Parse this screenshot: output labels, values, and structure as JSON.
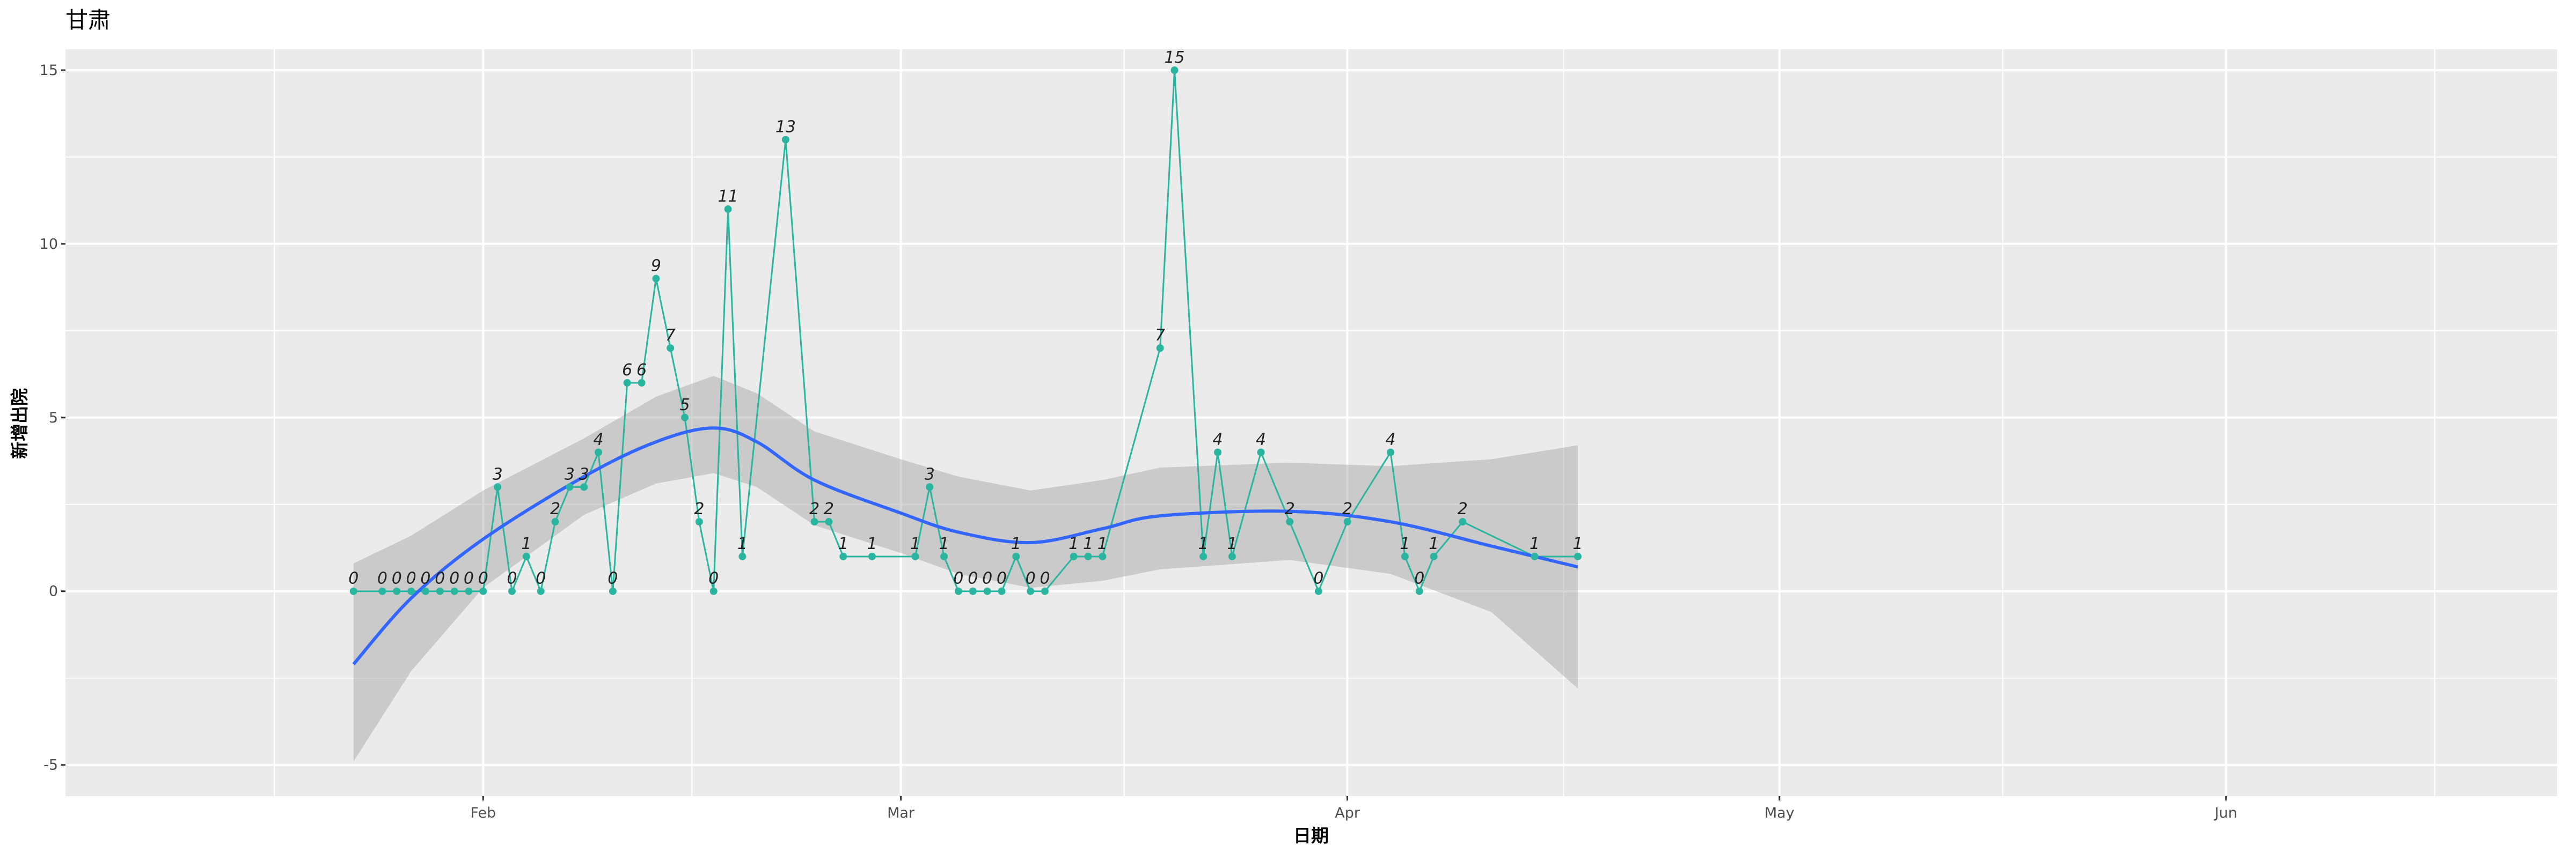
{
  "chart_data": {
    "type": "line",
    "title": "甘肃",
    "xlabel": "日期",
    "ylabel": "新增出院",
    "x_ticks": [
      {
        "date": "2020-02-01",
        "label": "Feb"
      },
      {
        "date": "2020-03-01",
        "label": "Mar"
      },
      {
        "date": "2020-04-01",
        "label": "Apr"
      },
      {
        "date": "2020-05-01",
        "label": "May"
      },
      {
        "date": "2020-06-01",
        "label": "Jun"
      }
    ],
    "y_ticks": [
      -5,
      0,
      5,
      10,
      15
    ],
    "xlim": [
      "2020-01-03",
      "2020-06-24"
    ],
    "ylim": [
      -5.9,
      15.6
    ],
    "grid": true,
    "colors": {
      "panel": "#EBEBEB",
      "grid": "#FFFFFF",
      "line": "#2AB5A0",
      "smooth": "#3366FF",
      "band": "#999999"
    },
    "points": [
      {
        "date": "2020-01-23",
        "y": 0
      },
      {
        "date": "2020-01-25",
        "y": 0
      },
      {
        "date": "2020-01-26",
        "y": 0
      },
      {
        "date": "2020-01-27",
        "y": 0
      },
      {
        "date": "2020-01-28",
        "y": 0
      },
      {
        "date": "2020-01-29",
        "y": 0
      },
      {
        "date": "2020-01-30",
        "y": 0
      },
      {
        "date": "2020-01-31",
        "y": 0
      },
      {
        "date": "2020-02-01",
        "y": 0
      },
      {
        "date": "2020-02-02",
        "y": 3
      },
      {
        "date": "2020-02-03",
        "y": 0
      },
      {
        "date": "2020-02-04",
        "y": 1
      },
      {
        "date": "2020-02-05",
        "y": 0
      },
      {
        "date": "2020-02-06",
        "y": 2
      },
      {
        "date": "2020-02-07",
        "y": 3
      },
      {
        "date": "2020-02-08",
        "y": 3
      },
      {
        "date": "2020-02-09",
        "y": 4
      },
      {
        "date": "2020-02-10",
        "y": 0
      },
      {
        "date": "2020-02-11",
        "y": 6
      },
      {
        "date": "2020-02-12",
        "y": 6
      },
      {
        "date": "2020-02-13",
        "y": 9
      },
      {
        "date": "2020-02-14",
        "y": 7
      },
      {
        "date": "2020-02-15",
        "y": 5
      },
      {
        "date": "2020-02-16",
        "y": 2
      },
      {
        "date": "2020-02-17",
        "y": 0
      },
      {
        "date": "2020-02-18",
        "y": 11
      },
      {
        "date": "2020-02-19",
        "y": 1
      },
      {
        "date": "2020-02-22",
        "y": 13
      },
      {
        "date": "2020-02-24",
        "y": 2
      },
      {
        "date": "2020-02-25",
        "y": 2
      },
      {
        "date": "2020-02-26",
        "y": 1
      },
      {
        "date": "2020-02-28",
        "y": 1
      },
      {
        "date": "2020-03-02",
        "y": 1
      },
      {
        "date": "2020-03-03",
        "y": 3
      },
      {
        "date": "2020-03-04",
        "y": 1
      },
      {
        "date": "2020-03-05",
        "y": 0
      },
      {
        "date": "2020-03-06",
        "y": 0
      },
      {
        "date": "2020-03-07",
        "y": 0
      },
      {
        "date": "2020-03-08",
        "y": 0
      },
      {
        "date": "2020-03-09",
        "y": 1
      },
      {
        "date": "2020-03-10",
        "y": 0
      },
      {
        "date": "2020-03-11",
        "y": 0
      },
      {
        "date": "2020-03-13",
        "y": 1
      },
      {
        "date": "2020-03-14",
        "y": 1
      },
      {
        "date": "2020-03-15",
        "y": 1
      },
      {
        "date": "2020-03-19",
        "y": 7
      },
      {
        "date": "2020-03-20",
        "y": 15
      },
      {
        "date": "2020-03-22",
        "y": 1
      },
      {
        "date": "2020-03-23",
        "y": 4
      },
      {
        "date": "2020-03-24",
        "y": 1
      },
      {
        "date": "2020-03-26",
        "y": 4
      },
      {
        "date": "2020-03-28",
        "y": 2
      },
      {
        "date": "2020-03-30",
        "y": 0
      },
      {
        "date": "2020-04-01",
        "y": 2
      },
      {
        "date": "2020-04-04",
        "y": 4
      },
      {
        "date": "2020-04-05",
        "y": 1
      },
      {
        "date": "2020-04-06",
        "y": 0
      },
      {
        "date": "2020-04-07",
        "y": 1
      },
      {
        "date": "2020-04-09",
        "y": 2
      },
      {
        "date": "2020-04-14",
        "y": 1
      },
      {
        "date": "2020-04-17",
        "y": 1
      }
    ],
    "smooth": [
      {
        "date": "2020-01-23",
        "y": -2.1,
        "ymin": -4.9,
        "ymax": 0.8
      },
      {
        "date": "2020-01-27",
        "y": -0.2,
        "ymin": -2.3,
        "ymax": 1.6
      },
      {
        "date": "2020-02-01",
        "y": 1.5,
        "ymin": 0.1,
        "ymax": 2.9
      },
      {
        "date": "2020-02-08",
        "y": 3.3,
        "ymin": 2.2,
        "ymax": 4.4
      },
      {
        "date": "2020-02-13",
        "y": 4.3,
        "ymin": 3.1,
        "ymax": 5.6
      },
      {
        "date": "2020-02-17",
        "y": 4.7,
        "ymin": 3.4,
        "ymax": 6.2
      },
      {
        "date": "2020-02-20",
        "y": 4.3,
        "ymin": 3.0,
        "ymax": 5.7
      },
      {
        "date": "2020-02-24",
        "y": 3.2,
        "ymin": 1.9,
        "ymax": 4.6
      },
      {
        "date": "2020-03-01",
        "y": 2.25,
        "ymin": 1.1,
        "ymax": 3.8
      },
      {
        "date": "2020-03-05",
        "y": 1.7,
        "ymin": 0.5,
        "ymax": 3.3
      },
      {
        "date": "2020-03-10",
        "y": 1.4,
        "ymin": 0.1,
        "ymax": 2.9
      },
      {
        "date": "2020-03-15",
        "y": 1.8,
        "ymin": 0.3,
        "ymax": 3.2
      },
      {
        "date": "2020-03-19",
        "y": 2.17,
        "ymin": 0.63,
        "ymax": 3.56
      },
      {
        "date": "2020-03-28",
        "y": 2.3,
        "ymin": 0.9,
        "ymax": 3.7
      },
      {
        "date": "2020-04-04",
        "y": 2.0,
        "ymin": 0.5,
        "ymax": 3.6
      },
      {
        "date": "2020-04-11",
        "y": 1.3,
        "ymin": -0.6,
        "ymax": 3.8
      },
      {
        "date": "2020-04-17",
        "y": 0.7,
        "ymin": -2.8,
        "ymax": 4.2
      }
    ]
  }
}
